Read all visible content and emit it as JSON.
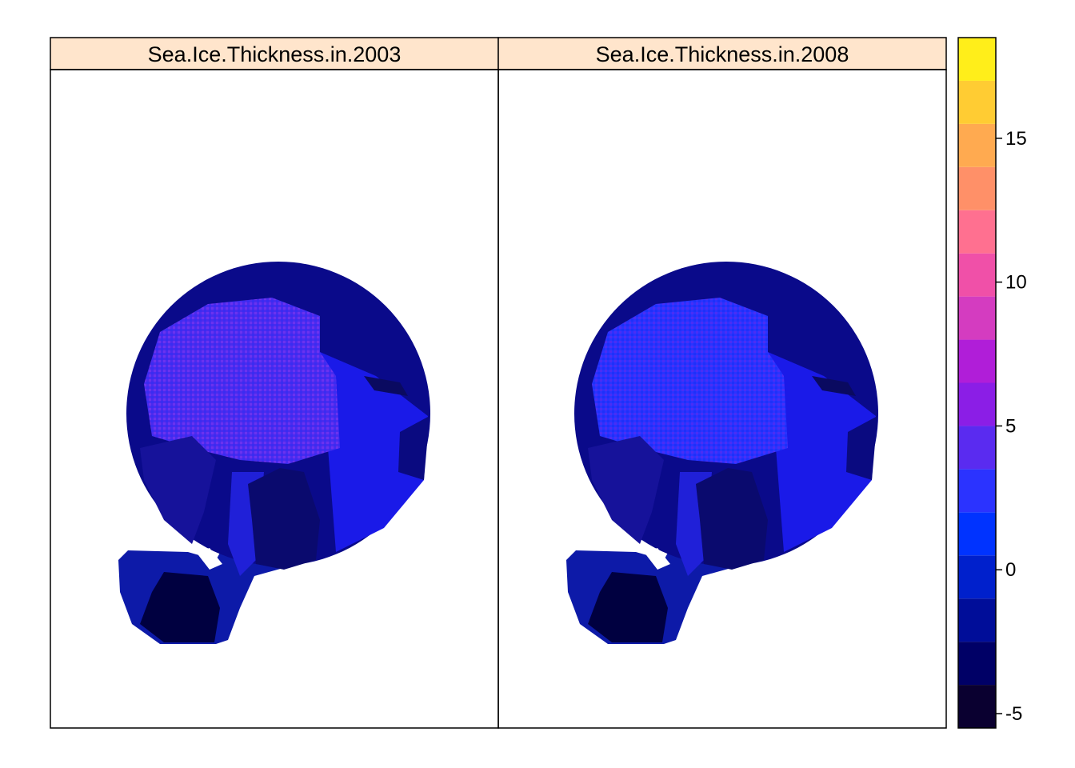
{
  "chart_data": {
    "type": "heatmap",
    "panels": [
      {
        "title": "Sea.Ice.Thickness.in.2003"
      },
      {
        "title": "Sea.Ice.Thickness.in.2008"
      }
    ],
    "colorbar": {
      "min": -5.5,
      "max": 18.5,
      "bins": [
        -5.5,
        -4,
        -2.5,
        -1,
        0.5,
        2,
        3.5,
        5,
        6.5,
        8,
        9.5,
        11,
        12.5,
        14,
        15.5,
        17,
        18.5
      ],
      "colors": [
        "#0a0030",
        "#000066",
        "#000d99",
        "#0020cc",
        "#0033ff",
        "#2b33ff",
        "#5a2bf0",
        "#8b1ee6",
        "#b01ed8",
        "#d43cc0",
        "#f050a8",
        "#ff7090",
        "#ff9068",
        "#ffaa50",
        "#ffcc33",
        "#ffee1a",
        "#ffff60"
      ],
      "ticks": [
        -5,
        0,
        5,
        10,
        15
      ],
      "tick_labels": [
        "-5",
        "0",
        "5",
        "10",
        "15"
      ]
    },
    "colors": {
      "strip_background": "#ffe5cc",
      "background": "#ffffff",
      "ocean_shelf": "#1a1ae8",
      "land": "#0a0a80",
      "thick_ice": "#5a2bf0",
      "greenland_dark": "#000040"
    }
  }
}
